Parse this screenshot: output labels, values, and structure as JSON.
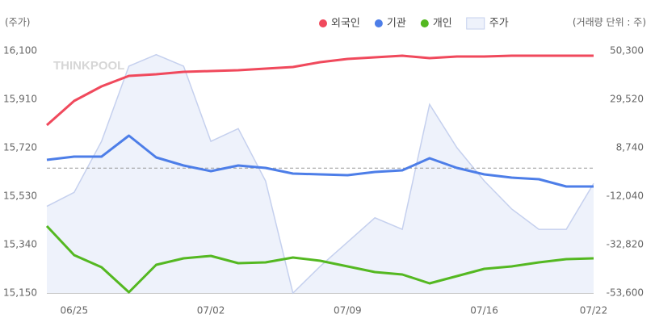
{
  "chart_data": {
    "type": "line",
    "y_label": "(주가)",
    "y2_label": "(거래량 단위 : 주)",
    "watermark": "THINKPOOL",
    "categories": [
      null,
      "06/25",
      null,
      null,
      null,
      null,
      "07/02",
      null,
      null,
      null,
      null,
      "07/09",
      null,
      null,
      null,
      null,
      "07/16",
      null,
      null,
      null,
      "07/22"
    ],
    "ylim": [
      15150,
      16100
    ],
    "yticks": [
      {
        "value": 15150,
        "label": "15,150"
      },
      {
        "value": 15340,
        "label": "15,340"
      },
      {
        "value": 15530,
        "label": "15,530"
      },
      {
        "value": 15720,
        "label": "15,720"
      },
      {
        "value": 15910,
        "label": "15,910"
      },
      {
        "value": 16100,
        "label": "16,100"
      }
    ],
    "y2lim": [
      -53600,
      50300
    ],
    "y2ticks": [
      {
        "value": -53600,
        "label": "-53,600"
      },
      {
        "value": -32820,
        "label": "-32,820"
      },
      {
        "value": -12040,
        "label": "-12,040"
      },
      {
        "value": 8740,
        "label": "8,740"
      },
      {
        "value": 29520,
        "label": "29,520"
      },
      {
        "value": 50300,
        "label": "50,300"
      }
    ],
    "y2_zero_line": true,
    "legend": "top-right",
    "series": [
      {
        "name": "외국인",
        "color": "#f0495c",
        "axis": "y2",
        "values": [
          18440,
          28830,
          35060,
          39560,
          40260,
          41300,
          41640,
          41990,
          42680,
          43370,
          45450,
          46840,
          47530,
          48220,
          47180,
          47880,
          47880,
          48220,
          48220,
          48220,
          48220
        ]
      },
      {
        "name": "기관",
        "color": "#4d7ee8",
        "axis": "y2",
        "values": [
          3550,
          4935,
          4935,
          13940,
          4590,
          1125,
          -1300,
          1125,
          90,
          -2340,
          -2680,
          -3030,
          -1645,
          -950,
          4240,
          90,
          -2680,
          -4070,
          -4760,
          -7880,
          -7880
        ]
      },
      {
        "name": "개인",
        "color": "#54b821",
        "axis": "y2",
        "values": [
          -24850,
          -37310,
          -42510,
          -53240,
          -41470,
          -38700,
          -37660,
          -40780,
          -40430,
          -38350,
          -39740,
          -42160,
          -44590,
          -45630,
          -49430,
          -46320,
          -43200,
          -42160,
          -40430,
          -39045,
          -38700
        ]
      },
      {
        "name": "주가",
        "color": "#c5d0ee",
        "fill": "#eef2fb",
        "type": "area",
        "axis": "y",
        "values": [
          15490,
          15545,
          15745,
          16040,
          16085,
          16040,
          15745,
          15795,
          15590,
          15150,
          15255,
          15350,
          15445,
          15400,
          15890,
          15720,
          15590,
          15480,
          15400,
          15400,
          15580
        ]
      }
    ]
  }
}
